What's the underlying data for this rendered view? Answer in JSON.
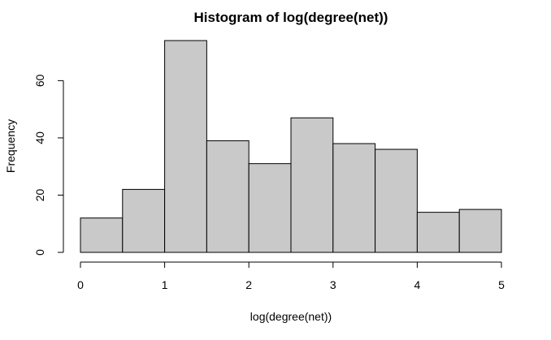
{
  "chart_data": {
    "type": "bar",
    "title": "Histogram of log(degree(net))",
    "xlabel": "log(degree(net))",
    "ylabel": "Frequency",
    "bins": [
      [
        0,
        0.5
      ],
      [
        0.5,
        1
      ],
      [
        1,
        1.5
      ],
      [
        1.5,
        2
      ],
      [
        2,
        2.5
      ],
      [
        2.5,
        3
      ],
      [
        3,
        3.5
      ],
      [
        3.5,
        4
      ],
      [
        4,
        4.5
      ],
      [
        4.5,
        5
      ]
    ],
    "values": [
      12,
      22,
      74,
      39,
      31,
      47,
      38,
      36,
      14,
      15
    ],
    "xlim": [
      0,
      5
    ],
    "ylim": [
      0,
      74
    ],
    "xticks": [
      0,
      1,
      2,
      3,
      4,
      5
    ],
    "yticks": [
      0,
      20,
      40,
      60
    ],
    "bar_color": "#c9c9c9",
    "grid": false,
    "legend": "none"
  }
}
